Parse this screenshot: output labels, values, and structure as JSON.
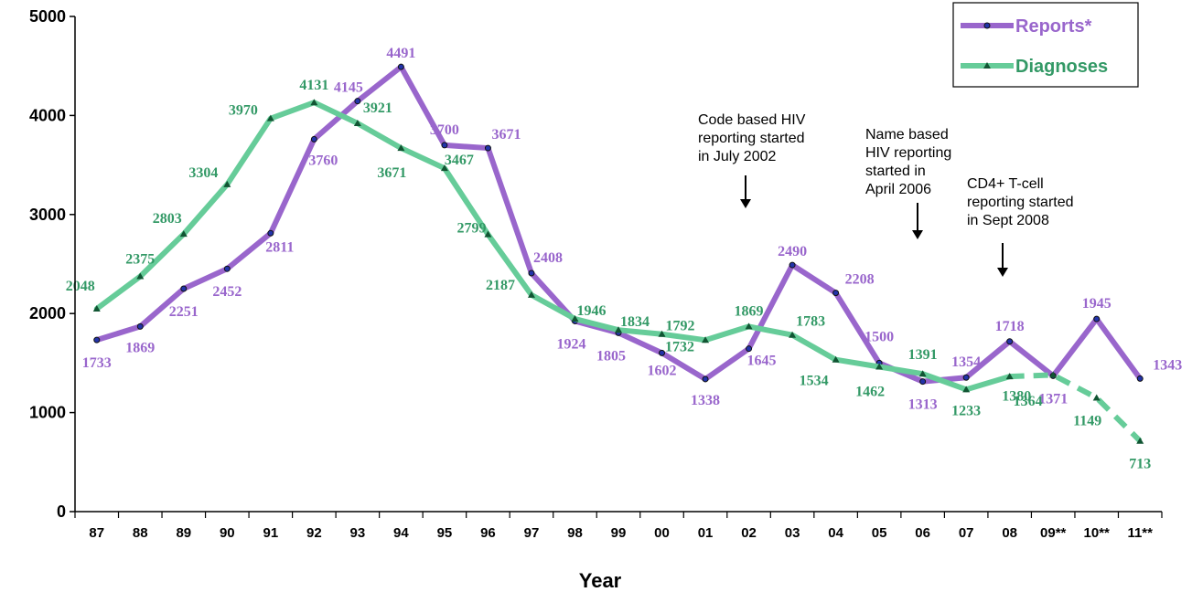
{
  "chart_data": {
    "type": "line",
    "title": "",
    "xlabel": "Year",
    "ylabel": "",
    "ylim": [
      0,
      5000
    ],
    "yticks": [
      "0",
      "1000",
      "2000",
      "3000",
      "4000",
      "5000"
    ],
    "categories": [
      "87",
      "88",
      "89",
      "90",
      "91",
      "92",
      "93",
      "94",
      "95",
      "96",
      "97",
      "98",
      "99",
      "00",
      "01",
      "02",
      "03",
      "04",
      "05",
      "06",
      "07",
      "08",
      "09**",
      "10**",
      "11**"
    ],
    "grid": false,
    "legend_position": "top-right",
    "series": [
      {
        "name": "Reports*",
        "color": "#9966CC",
        "marker": "circle",
        "values": [
          1733,
          1869,
          2251,
          2452,
          2811,
          3760,
          4145,
          4491,
          3700,
          3671,
          2408,
          1924,
          1805,
          1602,
          1338,
          1645,
          2490,
          2208,
          1500,
          1313,
          1354,
          1718,
          1371,
          1945,
          1343
        ],
        "labels": [
          "1733",
          "1869",
          "2251",
          "2452",
          "2811",
          "3760",
          "4145",
          "4491",
          "3700",
          "3671",
          "2408",
          "1924",
          "1805",
          "1602",
          "1338",
          "1645",
          "2490",
          "2208",
          "1500",
          "1313",
          "1354",
          "1718",
          "1371",
          "1945",
          "1343"
        ]
      },
      {
        "name": "Diagnoses",
        "color": "#66CC99",
        "label_color": "#339966",
        "marker": "triangle",
        "values": [
          2048,
          2375,
          2803,
          3304,
          3970,
          4131,
          3921,
          3671,
          3467,
          2799,
          2187,
          1946,
          1834,
          1792,
          1732,
          1869,
          1783,
          1534,
          1462,
          1391,
          1233,
          1364,
          1380,
          1149,
          713
        ],
        "labels": [
          "2048",
          "2375",
          "2803",
          "3304",
          "3970",
          "4131",
          "3921",
          "3671",
          "3467",
          "2799",
          "2187",
          "1946",
          "1834",
          "1792",
          "1732",
          "1869",
          "1783",
          "1534",
          "1462",
          "1391",
          "1233",
          "1364",
          "1380",
          "1149",
          "713"
        ],
        "dashed_from_index": 21
      }
    ],
    "annotations": [
      {
        "lines": [
          "Code based HIV",
          "reporting started",
          "in July 2002"
        ],
        "category_index": 15
      },
      {
        "lines": [
          "Name based",
          "HIV reporting",
          "started in",
          "April 2006"
        ],
        "category_index": 19
      },
      {
        "lines": [
          "CD4+ T-cell",
          "reporting started",
          "in Sept 2008"
        ],
        "category_index": 21
      }
    ]
  }
}
